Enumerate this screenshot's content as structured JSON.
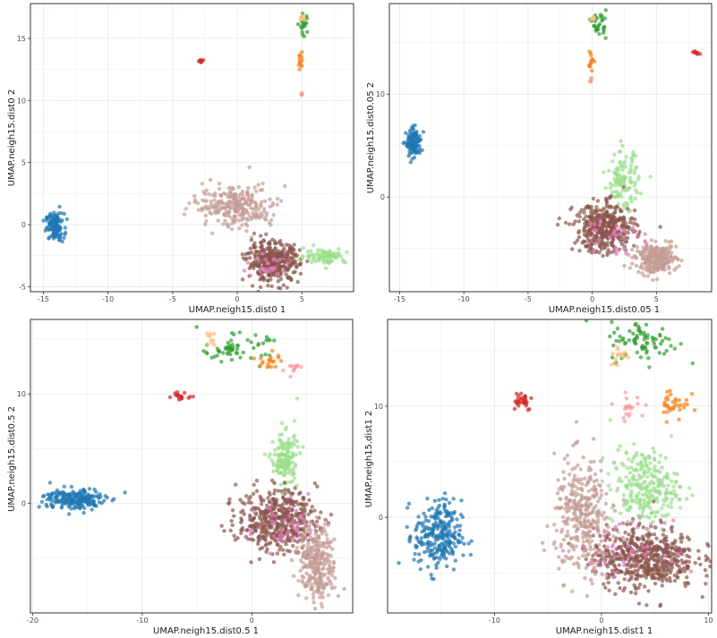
{
  "colors": {
    "blue": "#1f77b4",
    "red": "#d62728",
    "green": "#2ca02c",
    "light_green": "#98df8a",
    "orange": "#ff7f0e",
    "light_orange": "#ffbb78",
    "pink": "#ff9896",
    "brown": "#8c564b",
    "rosy": "#c49c94",
    "magenta": "#e377c2",
    "grid": "#ebebeb",
    "panel_border": "#333333"
  },
  "chart_data": [
    {
      "type": "scatter",
      "xlabel": "UMAP.neigh15.dist0 1",
      "ylabel": "UMAP.neigh15.dist0 2",
      "xlim": [
        -16,
        9
      ],
      "ylim": [
        -5.4,
        17.8
      ],
      "xticks": [
        -15,
        -10,
        -5,
        0,
        5
      ],
      "yticks": [
        -5,
        0,
        5,
        10,
        15
      ],
      "grid": true,
      "clusters": [
        {
          "color": "blue",
          "x": -14.1,
          "y": -0.2,
          "sx": 0.35,
          "sy": 0.55,
          "n": 120
        },
        {
          "color": "red",
          "x": -2.8,
          "y": 13.2,
          "sx": 0.1,
          "sy": 0.08,
          "n": 8
        },
        {
          "color": "green",
          "x": 5.2,
          "y": 16.2,
          "sx": 0.15,
          "sy": 0.5,
          "n": 25
        },
        {
          "color": "light_orange",
          "x": 5.0,
          "y": 16.6,
          "sx": 0.12,
          "sy": 0.12,
          "n": 8
        },
        {
          "color": "orange",
          "x": 4.9,
          "y": 13.2,
          "sx": 0.08,
          "sy": 0.35,
          "n": 14
        },
        {
          "color": "pink",
          "x": 5.0,
          "y": 10.6,
          "sx": 0.06,
          "sy": 0.15,
          "n": 5
        },
        {
          "color": "rosy",
          "x": 0.9,
          "y": 1.0,
          "sx": 1.3,
          "sy": 0.8,
          "n": 260,
          "x2": -1.0,
          "y2": 2.0
        },
        {
          "color": "brown",
          "x": 2.8,
          "y": -3.0,
          "sx": 1.0,
          "sy": 0.8,
          "n": 360
        },
        {
          "color": "light_green",
          "x": 6.8,
          "y": -2.5,
          "sx": 0.8,
          "sy": 0.3,
          "n": 80
        },
        {
          "color": "magenta",
          "x": 2.5,
          "y": -3.2,
          "sx": 0.9,
          "sy": 0.6,
          "n": 30
        }
      ]
    },
    {
      "type": "scatter",
      "xlabel": "UMAP.neigh15.dist0.05 1",
      "ylabel": "UMAP.neigh15.dist0.05 2",
      "xlim": [
        -15.8,
        9.3
      ],
      "ylim": [
        -9.2,
        18.8
      ],
      "xticks": [
        -15,
        -10,
        -5,
        0,
        5
      ],
      "yticks": [
        0,
        10
      ],
      "grid": true,
      "clusters": [
        {
          "color": "blue",
          "x": -13.9,
          "y": 5.2,
          "sx": 0.3,
          "sy": 0.65,
          "n": 120
        },
        {
          "color": "red",
          "x": 8.2,
          "y": 14.0,
          "sx": 0.12,
          "sy": 0.1,
          "n": 8
        },
        {
          "color": "green",
          "x": 0.5,
          "y": 16.9,
          "sx": 0.3,
          "sy": 0.6,
          "n": 30
        },
        {
          "color": "orange",
          "x": -0.1,
          "y": 13.2,
          "sx": 0.1,
          "sy": 0.5,
          "n": 14
        },
        {
          "color": "light_orange",
          "x": 0.1,
          "y": 17.3,
          "sx": 0.12,
          "sy": 0.12,
          "n": 6
        },
        {
          "color": "pink",
          "x": -0.1,
          "y": 11.4,
          "sx": 0.05,
          "sy": 0.2,
          "n": 5
        },
        {
          "color": "light_green",
          "x": 2.4,
          "y": 1.5,
          "sx": 0.6,
          "sy": 1.4,
          "n": 120
        },
        {
          "color": "brown",
          "x": 1.0,
          "y": -3.0,
          "sx": 1.2,
          "sy": 1.2,
          "n": 380
        },
        {
          "color": "rosy",
          "x": 5.0,
          "y": -6.0,
          "sx": 0.8,
          "sy": 0.7,
          "n": 260
        },
        {
          "color": "magenta",
          "x": 1.5,
          "y": -3.5,
          "sx": 1.0,
          "sy": 1.0,
          "n": 30
        }
      ]
    },
    {
      "type": "scatter",
      "xlabel": "UMAP.neigh15.dist0.5 1",
      "ylabel": "UMAP.neigh15.dist0.5 2",
      "xlim": [
        -20.2,
        9.2
      ],
      "ylim": [
        -10,
        16.8
      ],
      "xticks": [
        -20,
        -10,
        0
      ],
      "yticks": [
        0,
        10
      ],
      "grid": true,
      "clusters": [
        {
          "color": "blue",
          "x": -16.2,
          "y": 0.4,
          "sx": 1.4,
          "sy": 0.5,
          "n": 200
        },
        {
          "color": "red",
          "x": -6.5,
          "y": 9.7,
          "sx": 0.45,
          "sy": 0.18,
          "n": 18
        },
        {
          "color": "green",
          "x": -1.5,
          "y": 14.2,
          "sx": 1.5,
          "sy": 0.6,
          "n": 60
        },
        {
          "color": "light_orange",
          "x": -3.8,
          "y": 15.2,
          "sx": 0.2,
          "sy": 0.4,
          "n": 10
        },
        {
          "color": "orange",
          "x": 1.6,
          "y": 13.0,
          "sx": 0.6,
          "sy": 0.4,
          "n": 20
        },
        {
          "color": "pink",
          "x": 3.8,
          "y": 12.3,
          "sx": 0.4,
          "sy": 0.3,
          "n": 12
        },
        {
          "color": "light_green",
          "x": 3.0,
          "y": 4.0,
          "sx": 0.6,
          "sy": 1.3,
          "n": 150
        },
        {
          "color": "brown",
          "x": 2.3,
          "y": -1.5,
          "sx": 1.8,
          "sy": 1.4,
          "n": 450
        },
        {
          "color": "rosy",
          "x": 6.0,
          "y": -5.5,
          "sx": 0.8,
          "sy": 1.7,
          "n": 280
        },
        {
          "color": "magenta",
          "x": 3.0,
          "y": -2.0,
          "sx": 1.5,
          "sy": 1.3,
          "n": 40
        }
      ]
    },
    {
      "type": "scatter",
      "xlabel": "UMAP.neigh15.dist1 1",
      "ylabel": "UMAP.neigh15.dist1 2",
      "xlim": [
        -20,
        10.3
      ],
      "ylim": [
        -8.6,
        17.8
      ],
      "xticks": [
        -10,
        0,
        10
      ],
      "yticks": [
        0,
        10
      ],
      "grid": true,
      "clusters": [
        {
          "color": "blue",
          "x": -15.3,
          "y": -1.7,
          "sx": 1.1,
          "sy": 1.6,
          "n": 260
        },
        {
          "color": "red",
          "x": -7.5,
          "y": 10.6,
          "sx": 0.55,
          "sy": 0.5,
          "n": 30
        },
        {
          "color": "green",
          "x": 4.0,
          "y": 15.8,
          "sx": 1.6,
          "sy": 0.9,
          "n": 80
        },
        {
          "color": "light_orange",
          "x": 1.8,
          "y": 14.5,
          "sx": 0.5,
          "sy": 0.5,
          "n": 15
        },
        {
          "color": "orange",
          "x": 6.8,
          "y": 10.3,
          "sx": 0.7,
          "sy": 0.8,
          "n": 35
        },
        {
          "color": "pink",
          "x": 2.6,
          "y": 10.0,
          "sx": 0.7,
          "sy": 0.5,
          "n": 20
        },
        {
          "color": "light_green",
          "x": 4.0,
          "y": 2.7,
          "sx": 1.6,
          "sy": 1.7,
          "n": 260
        },
        {
          "color": "brown",
          "x": 4.0,
          "y": -3.6,
          "sx": 2.4,
          "sy": 1.4,
          "n": 550
        },
        {
          "color": "rosy",
          "x": -1.8,
          "y": 0.0,
          "sx": 1.3,
          "sy": 2.6,
          "n": 330
        },
        {
          "color": "magenta",
          "x": 2.0,
          "y": -2.8,
          "sx": 2.0,
          "sy": 1.2,
          "n": 50
        }
      ]
    }
  ]
}
